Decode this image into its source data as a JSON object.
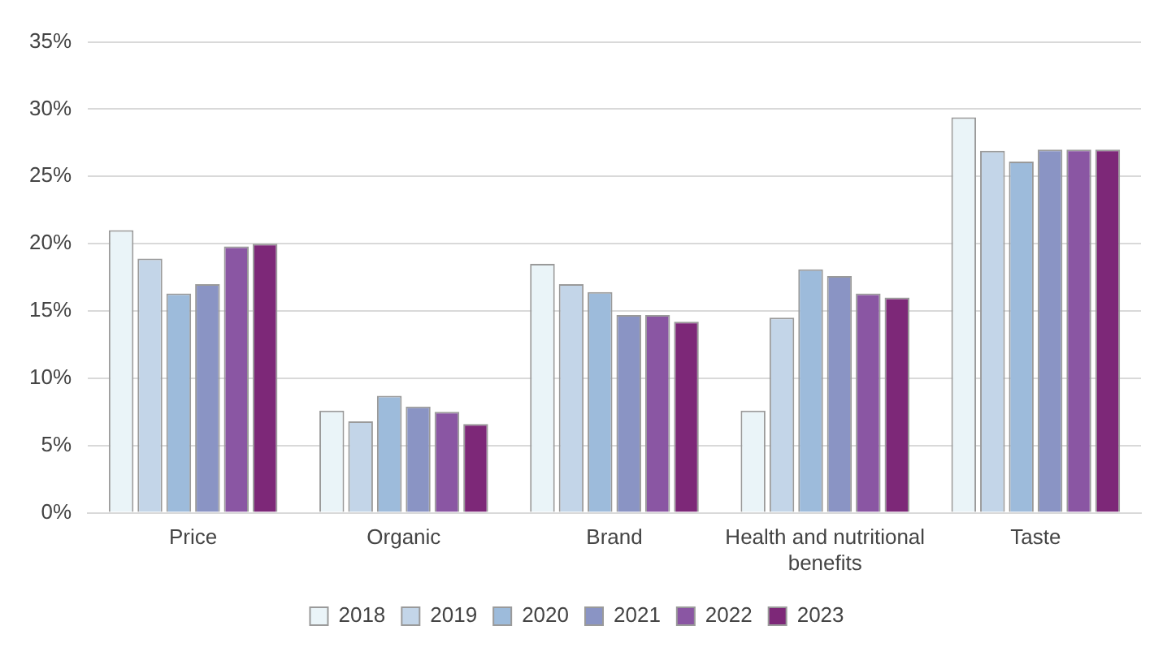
{
  "chart_data": {
    "type": "bar",
    "categories": [
      "Price",
      "Organic",
      "Brand",
      "Health and nutritional benefits",
      "Taste"
    ],
    "series": [
      {
        "name": "2018",
        "color": "#eaf4f8",
        "values": [
          21.0,
          7.6,
          18.5,
          7.6,
          29.4
        ]
      },
      {
        "name": "2019",
        "color": "#c3d5e8",
        "values": [
          18.9,
          6.8,
          17.0,
          14.5,
          26.9
        ]
      },
      {
        "name": "2020",
        "color": "#9dbbdb",
        "values": [
          16.3,
          8.7,
          16.4,
          18.1,
          26.1
        ]
      },
      {
        "name": "2021",
        "color": "#8a94c4",
        "values": [
          17.0,
          7.9,
          14.7,
          17.6,
          27.0
        ]
      },
      {
        "name": "2022",
        "color": "#8a56a3",
        "values": [
          19.8,
          7.5,
          14.7,
          16.3,
          27.0
        ]
      },
      {
        "name": "2023",
        "color": "#7d2878",
        "values": [
          20.0,
          6.6,
          14.2,
          16.0,
          27.0
        ]
      }
    ],
    "ylim": [
      0,
      35
    ],
    "yticks": [
      {
        "value": 0,
        "label": "0%"
      },
      {
        "value": 5,
        "label": "5%"
      },
      {
        "value": 10,
        "label": "10%"
      },
      {
        "value": 15,
        "label": "15%"
      },
      {
        "value": 20,
        "label": "20%"
      },
      {
        "value": 25,
        "label": "25%"
      },
      {
        "value": 30,
        "label": "30%"
      },
      {
        "value": 35,
        "label": "35%"
      }
    ],
    "grid": "y",
    "legend": "bottom"
  }
}
